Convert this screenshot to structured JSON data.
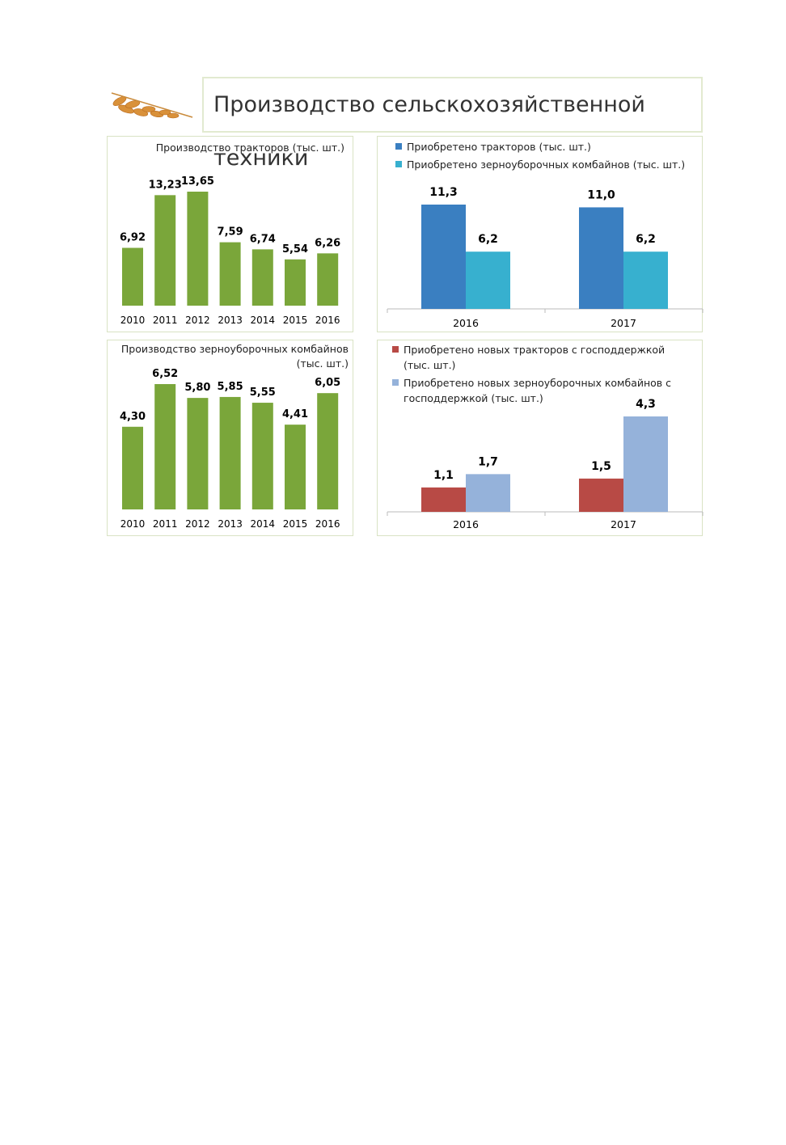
{
  "title": "Производство сельскохозяйственной техники",
  "chart_data": [
    {
      "type": "bar",
      "title": "Производство тракторов (тыс. шт.)",
      "categories": [
        "2010",
        "2011",
        "2012",
        "2013",
        "2014",
        "2015",
        "2016"
      ],
      "values": [
        6.92,
        13.23,
        13.65,
        7.59,
        6.74,
        5.54,
        6.26
      ],
      "value_labels": [
        "6,92",
        "13,23",
        "13,65",
        "7,59",
        "6,74",
        "5,54",
        "6,26"
      ],
      "color": "#7aa63a"
    },
    {
      "type": "bar",
      "title": "Производство зерноуборочных комбайнов (тыс. шт.)",
      "categories": [
        "2010",
        "2011",
        "2012",
        "2013",
        "2014",
        "2015",
        "2016"
      ],
      "values": [
        4.3,
        6.52,
        5.8,
        5.85,
        5.55,
        4.41,
        6.05
      ],
      "value_labels": [
        "4,30",
        "6,52",
        "5,80",
        "5,85",
        "5,55",
        "4,41",
        "6,05"
      ],
      "color": "#7aa63a"
    },
    {
      "type": "grouped-bar",
      "categories": [
        "2016",
        "2017"
      ],
      "series": [
        {
          "name": "Приобретено тракторов (тыс. шт.)",
          "color": "#3a7fc1",
          "values": [
            11.3,
            11.0
          ],
          "value_labels": [
            "11,3",
            "11,0"
          ]
        },
        {
          "name": "Приобретено зерноуборочных комбайнов (тыс. шт.)",
          "color": "#37b0cf",
          "values": [
            6.2,
            6.2
          ],
          "value_labels": [
            "6,2",
            "6,2"
          ]
        }
      ]
    },
    {
      "type": "grouped-bar",
      "categories": [
        "2016",
        "2017"
      ],
      "series": [
        {
          "name": "Приобретено новых тракторов с господдержкой (тыс. шт.)",
          "color": "#b84a45",
          "values": [
            1.1,
            1.5
          ],
          "value_labels": [
            "1,1",
            "1,5"
          ]
        },
        {
          "name": "Приобретено новых зерноуборочных комбайнов с господдержкой (тыс. шт.)",
          "color": "#95b2da",
          "values": [
            1.7,
            4.3
          ],
          "value_labels": [
            "1,7",
            "4,3"
          ]
        }
      ]
    }
  ]
}
